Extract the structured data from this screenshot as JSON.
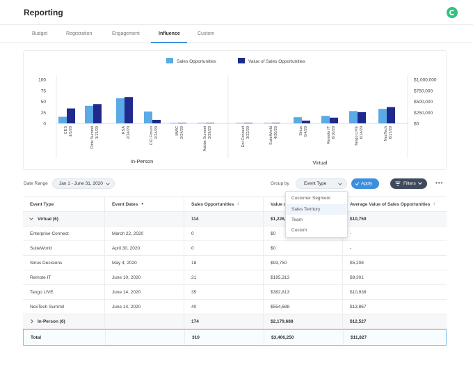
{
  "header": {
    "title": "Reporting"
  },
  "tabs": [
    "Budget",
    "Registration",
    "Engagement",
    "Influence",
    "Custom"
  ],
  "active_tab": "Influence",
  "colors": {
    "accent": "#3d8fdc",
    "series1": "#5aaae6",
    "series2": "#1f2a8c",
    "logo": "#2ec27e"
  },
  "chart_data": {
    "type": "bar",
    "categories": [
      "CES 1/5/20",
      "Citrix Summit 1/13/20",
      "RSA 2/24/20",
      "CIO Forum 2/24/20",
      "MWC 2/24/20",
      "Adobe Summit 3/29/20",
      "Ent Connect 3/22/20",
      "SuiteWorld 4/20/20",
      "Sirius 5/4/20",
      "Remote IT 6/10/20",
      "Tango LIVE 6/14/20",
      "NexTech 6/17/20"
    ],
    "category_lines": [
      [
        "CES",
        "1/5/20"
      ],
      [
        "Citrix Summit",
        "1/13/20"
      ],
      [
        "RSA",
        "2/24/20"
      ],
      [
        "CIO Forum",
        "2/24/20"
      ],
      [
        "MWC",
        "2/24/20"
      ],
      [
        "Adobe Summit",
        "3/29/20"
      ],
      [
        "Ent Connect",
        "3/22/20"
      ],
      [
        "SuiteWorld",
        "4/20/20"
      ],
      [
        "Sirius",
        "5/4/20"
      ],
      [
        "Remote IT",
        "6/10/20"
      ],
      [
        "Tango LIVE",
        "6/14/20"
      ],
      [
        "NexTech",
        "6/17/20"
      ]
    ],
    "groups": [
      {
        "label": "In-Person",
        "categories": 6
      },
      {
        "label": "Virtual",
        "categories": 6
      }
    ],
    "series": [
      {
        "name": "Sales Opportunities",
        "axis": "left",
        "values": [
          15,
          40,
          57,
          27,
          1,
          1,
          0,
          1,
          14,
          17,
          28,
          33
        ]
      },
      {
        "name": "Value of Sales Opportunities",
        "axis": "right",
        "values": [
          340000,
          440000,
          600000,
          80000,
          5000,
          5000,
          0,
          8000,
          62000,
          130000,
          255000,
          370000
        ]
      }
    ],
    "y_left": {
      "ticks": [
        "100",
        "75",
        "50",
        "25",
        "0"
      ],
      "range": [
        0,
        100
      ]
    },
    "y_right": {
      "ticks": [
        "$1,000,000",
        "$750,000",
        "$500,000",
        "$250,000",
        "$0"
      ],
      "range": [
        0,
        1000000
      ]
    },
    "legend_position": "top-center",
    "grid": false
  },
  "filters": {
    "date_range_label": "Date Range",
    "date_range_value": "Jan 1 - June 31, 2020",
    "group_by_label": "Group by",
    "group_by_value": "Event Type",
    "apply_label": "Apply",
    "filters_label": "Filters",
    "more_label": "•••"
  },
  "dropdown": {
    "options": [
      "Customer Segment",
      "Sales Territory",
      "Team",
      "Custom"
    ],
    "hovered": "Sales Territory"
  },
  "table": {
    "columns": [
      "Event Type",
      "Event Dates",
      "Sales Opportunities",
      "Value o",
      "Average Value of Sales Opportunities"
    ],
    "virtual_group": {
      "label": "Virtual (6)",
      "dates": "",
      "opps": "114",
      "value": "$1,226,5",
      "avg": "$10,759"
    },
    "virtual_rows": [
      {
        "type": "Enterprise Connect",
        "dates": "March 22, 2020",
        "opps": "0",
        "value": "$0",
        "avg": "-"
      },
      {
        "type": "SuiteWorld",
        "dates": "April 30, 2020",
        "opps": "0",
        "value": "$0",
        "avg": "-"
      },
      {
        "type": "Sirius Decisions",
        "dates": "May 4, 2020",
        "opps": "18",
        "value": "$93,750",
        "avg": "$5,208"
      },
      {
        "type": "Remote IT",
        "dates": "June 10, 2020",
        "opps": "21",
        "value": "$195,313",
        "avg": "$9,301"
      },
      {
        "type": "Tango LIVE",
        "dates": "June 14, 2020",
        "opps": "35",
        "value": "$382,813",
        "avg": "$10,938"
      },
      {
        "type": "NexTech Summit",
        "dates": "June 14, 2020",
        "opps": "40",
        "value": "$554,688",
        "avg": "$13,867"
      }
    ],
    "inperson_group": {
      "label": "In-Person (6)",
      "dates": "",
      "opps": "174",
      "value": "$2,179,688",
      "avg": "$12,527"
    },
    "total": {
      "label": "Total",
      "dates": "",
      "opps": "310",
      "value": "$3,406,250",
      "avg": "$11,827"
    }
  }
}
